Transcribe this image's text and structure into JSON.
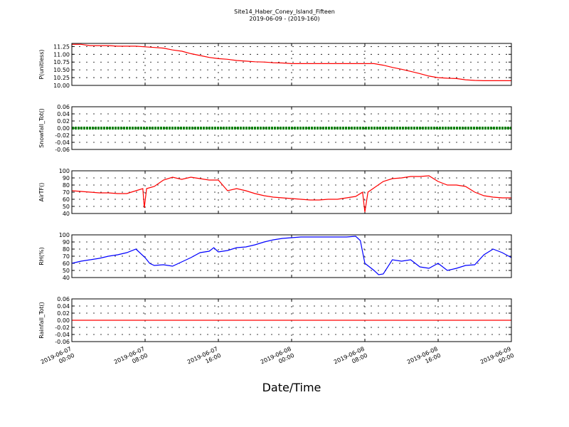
{
  "title": "Site14_Haber_Coney_Island_Fifteen",
  "subtitle": "2019-06-09 - (2019-160)",
  "x_axis": {
    "label": "Date/Time",
    "lim": [
      "2019-06-07 00:00",
      "2019-06-09 00:00"
    ],
    "ticks": [
      "2019-06-07 00:00",
      "2019-06-07 08:00",
      "2019-06-07 16:00",
      "2019-06-08 00:00",
      "2019-06-08 08:00",
      "2019-06-08 16:00",
      "2019-06-09 00:00"
    ]
  },
  "chart_data": [
    {
      "type": "line",
      "y_label": "P(unitless)",
      "color": "#ff0000",
      "ylim": [
        10,
        11.35
      ],
      "yticks": [
        {
          "value": 10,
          "label": "10.00"
        },
        {
          "value": 10.25,
          "label": "10.25"
        },
        {
          "value": 10.5,
          "label": "10.50"
        },
        {
          "value": 10.75,
          "label": "10.75"
        },
        {
          "value": 11,
          "label": "11.00"
        },
        {
          "value": 11.25,
          "label": "11.25"
        }
      ],
      "x": [
        "2019-06-07 00:00",
        "2019-06-07 01:00",
        "2019-06-07 02:00",
        "2019-06-07 03:00",
        "2019-06-07 04:00",
        "2019-06-07 05:00",
        "2019-06-07 06:00",
        "2019-06-07 07:00",
        "2019-06-07 08:00",
        "2019-06-07 09:00",
        "2019-06-07 10:00",
        "2019-06-07 11:00",
        "2019-06-07 12:00",
        "2019-06-07 13:00",
        "2019-06-07 14:00",
        "2019-06-07 15:00",
        "2019-06-07 16:00",
        "2019-06-07 17:00",
        "2019-06-07 18:00",
        "2019-06-07 19:00",
        "2019-06-07 20:00",
        "2019-06-07 21:00",
        "2019-06-07 22:00",
        "2019-06-07 23:00",
        "2019-06-08 00:00",
        "2019-06-08 01:00",
        "2019-06-08 02:00",
        "2019-06-08 03:00",
        "2019-06-08 04:00",
        "2019-06-08 05:00",
        "2019-06-08 06:00",
        "2019-06-08 07:00",
        "2019-06-08 08:00",
        "2019-06-08 09:00",
        "2019-06-08 10:00",
        "2019-06-08 11:00",
        "2019-06-08 12:00",
        "2019-06-08 13:00",
        "2019-06-08 14:00",
        "2019-06-08 15:00",
        "2019-06-08 16:00",
        "2019-06-08 17:00",
        "2019-06-08 18:00",
        "2019-06-08 19:00",
        "2019-06-08 20:00",
        "2019-06-08 21:00",
        "2019-06-08 22:00",
        "2019-06-08 23:00",
        "2019-06-09 00:00"
      ],
      "values": [
        11.32,
        11.32,
        11.28,
        11.28,
        11.28,
        11.26,
        11.26,
        11.26,
        11.24,
        11.22,
        11.2,
        11.14,
        11.1,
        11.02,
        10.96,
        10.9,
        10.86,
        10.84,
        10.8,
        10.78,
        10.76,
        10.75,
        10.73,
        10.72,
        10.7,
        10.7,
        10.7,
        10.7,
        10.7,
        10.7,
        10.7,
        10.7,
        10.7,
        10.7,
        10.65,
        10.58,
        10.52,
        10.45,
        10.38,
        10.3,
        10.25,
        10.23,
        10.22,
        10.18,
        10.16,
        10.15,
        10.15,
        10.15,
        10.15
      ]
    },
    {
      "type": "line",
      "y_label": "Snowfall_Tot()",
      "color": "#008000",
      "marker": true,
      "ylim": [
        -0.06,
        0.06
      ],
      "yticks": [
        -0.06,
        -0.04,
        -0.02,
        {
          "value": 0,
          "label": "0.00"
        },
        0.02,
        0.04,
        0.06
      ],
      "x": [
        "2019-06-07 00:00",
        "2019-06-09 00:00"
      ],
      "values": [
        0,
        0
      ]
    },
    {
      "type": "line",
      "y_label": "AirTF()",
      "color": "#ff0000",
      "ylim": [
        40,
        100
      ],
      "yticks": [
        40,
        50,
        60,
        70,
        80,
        90,
        100
      ],
      "x": [
        "2019-06-07 00:00",
        "2019-06-07 01:00",
        "2019-06-07 02:00",
        "2019-06-07 03:00",
        "2019-06-07 04:00",
        "2019-06-07 05:00",
        "2019-06-07 06:00",
        "2019-06-07 07:00",
        "2019-06-07 07:45",
        "2019-06-07 07:55",
        "2019-06-07 08:10",
        "2019-06-07 09:00",
        "2019-06-07 10:00",
        "2019-06-07 11:00",
        "2019-06-07 12:00",
        "2019-06-07 13:00",
        "2019-06-07 14:00",
        "2019-06-07 15:00",
        "2019-06-07 16:00",
        "2019-06-07 17:00",
        "2019-06-07 18:00",
        "2019-06-07 19:00",
        "2019-06-07 20:00",
        "2019-06-07 21:00",
        "2019-06-07 22:00",
        "2019-06-07 23:00",
        "2019-06-08 00:00",
        "2019-06-08 01:00",
        "2019-06-08 02:00",
        "2019-06-08 03:00",
        "2019-06-08 04:00",
        "2019-06-08 05:00",
        "2019-06-08 06:00",
        "2019-06-08 07:00",
        "2019-06-08 07:45",
        "2019-06-08 08:00",
        "2019-06-08 08:20",
        "2019-06-08 09:00",
        "2019-06-08 10:00",
        "2019-06-08 11:00",
        "2019-06-08 12:00",
        "2019-06-08 13:00",
        "2019-06-08 14:00",
        "2019-06-08 15:00",
        "2019-06-08 16:00",
        "2019-06-08 17:00",
        "2019-06-08 18:00",
        "2019-06-08 19:00",
        "2019-06-08 20:00",
        "2019-06-08 21:00",
        "2019-06-08 22:00",
        "2019-06-08 23:00",
        "2019-06-09 00:00"
      ],
      "values": [
        72,
        71,
        70,
        69,
        69,
        68,
        68,
        72,
        75,
        48,
        75,
        78,
        87,
        91,
        88,
        91,
        89,
        87,
        87,
        72,
        75,
        72,
        68,
        65,
        63,
        62,
        61,
        60,
        59,
        59,
        60,
        60,
        62,
        64,
        70,
        42,
        70,
        76,
        85,
        89,
        90,
        92,
        92,
        93,
        85,
        80,
        80,
        78,
        70,
        65,
        63,
        62,
        62
      ]
    },
    {
      "type": "line",
      "y_label": "RH(%)",
      "color": "#0000ff",
      "ylim": [
        40,
        100
      ],
      "yticks": [
        40,
        50,
        60,
        70,
        80,
        90,
        100
      ],
      "x": [
        "2019-06-07 00:00",
        "2019-06-07 01:00",
        "2019-06-07 02:00",
        "2019-06-07 03:00",
        "2019-06-07 04:00",
        "2019-06-07 05:00",
        "2019-06-07 06:00",
        "2019-06-07 07:00",
        "2019-06-07 08:00",
        "2019-06-07 08:30",
        "2019-06-07 09:00",
        "2019-06-07 10:00",
        "2019-06-07 11:00",
        "2019-06-07 12:00",
        "2019-06-07 13:00",
        "2019-06-07 14:00",
        "2019-06-07 15:00",
        "2019-06-07 15:30",
        "2019-06-07 16:00",
        "2019-06-07 17:00",
        "2019-06-07 18:00",
        "2019-06-07 19:00",
        "2019-06-07 20:00",
        "2019-06-07 21:00",
        "2019-06-07 22:00",
        "2019-06-07 23:00",
        "2019-06-08 00:00",
        "2019-06-08 01:00",
        "2019-06-08 02:00",
        "2019-06-08 03:00",
        "2019-06-08 04:00",
        "2019-06-08 05:00",
        "2019-06-08 06:00",
        "2019-06-08 07:00",
        "2019-06-08 07:30",
        "2019-06-08 08:00",
        "2019-06-08 09:00",
        "2019-06-08 09:30",
        "2019-06-08 10:00",
        "2019-06-08 11:00",
        "2019-06-08 12:00",
        "2019-06-08 13:00",
        "2019-06-08 14:00",
        "2019-06-08 15:00",
        "2019-06-08 16:00",
        "2019-06-08 17:00",
        "2019-06-08 18:00",
        "2019-06-08 19:00",
        "2019-06-08 20:00",
        "2019-06-08 21:00",
        "2019-06-08 22:00",
        "2019-06-08 23:00",
        "2019-06-09 00:00"
      ],
      "values": [
        60,
        63,
        65,
        67,
        70,
        72,
        75,
        80,
        68,
        60,
        57,
        58,
        56,
        62,
        68,
        75,
        77,
        82,
        76,
        78,
        82,
        83,
        86,
        90,
        93,
        95,
        96,
        97,
        97,
        97,
        97,
        97,
        97,
        98,
        92,
        60,
        50,
        44,
        45,
        65,
        63,
        65,
        55,
        53,
        60,
        50,
        53,
        57,
        58,
        72,
        80,
        75,
        68
      ]
    },
    {
      "type": "line",
      "y_label": "Rainfall_Tot()",
      "color": "#ff0000",
      "ylim": [
        -0.06,
        0.06
      ],
      "yticks": [
        -0.06,
        -0.04,
        -0.02,
        {
          "value": 0,
          "label": "0.00"
        },
        0.02,
        0.04,
        0.06
      ],
      "x": [
        "2019-06-07 00:00",
        "2019-06-09 00:00"
      ],
      "values": [
        0,
        0
      ]
    }
  ]
}
